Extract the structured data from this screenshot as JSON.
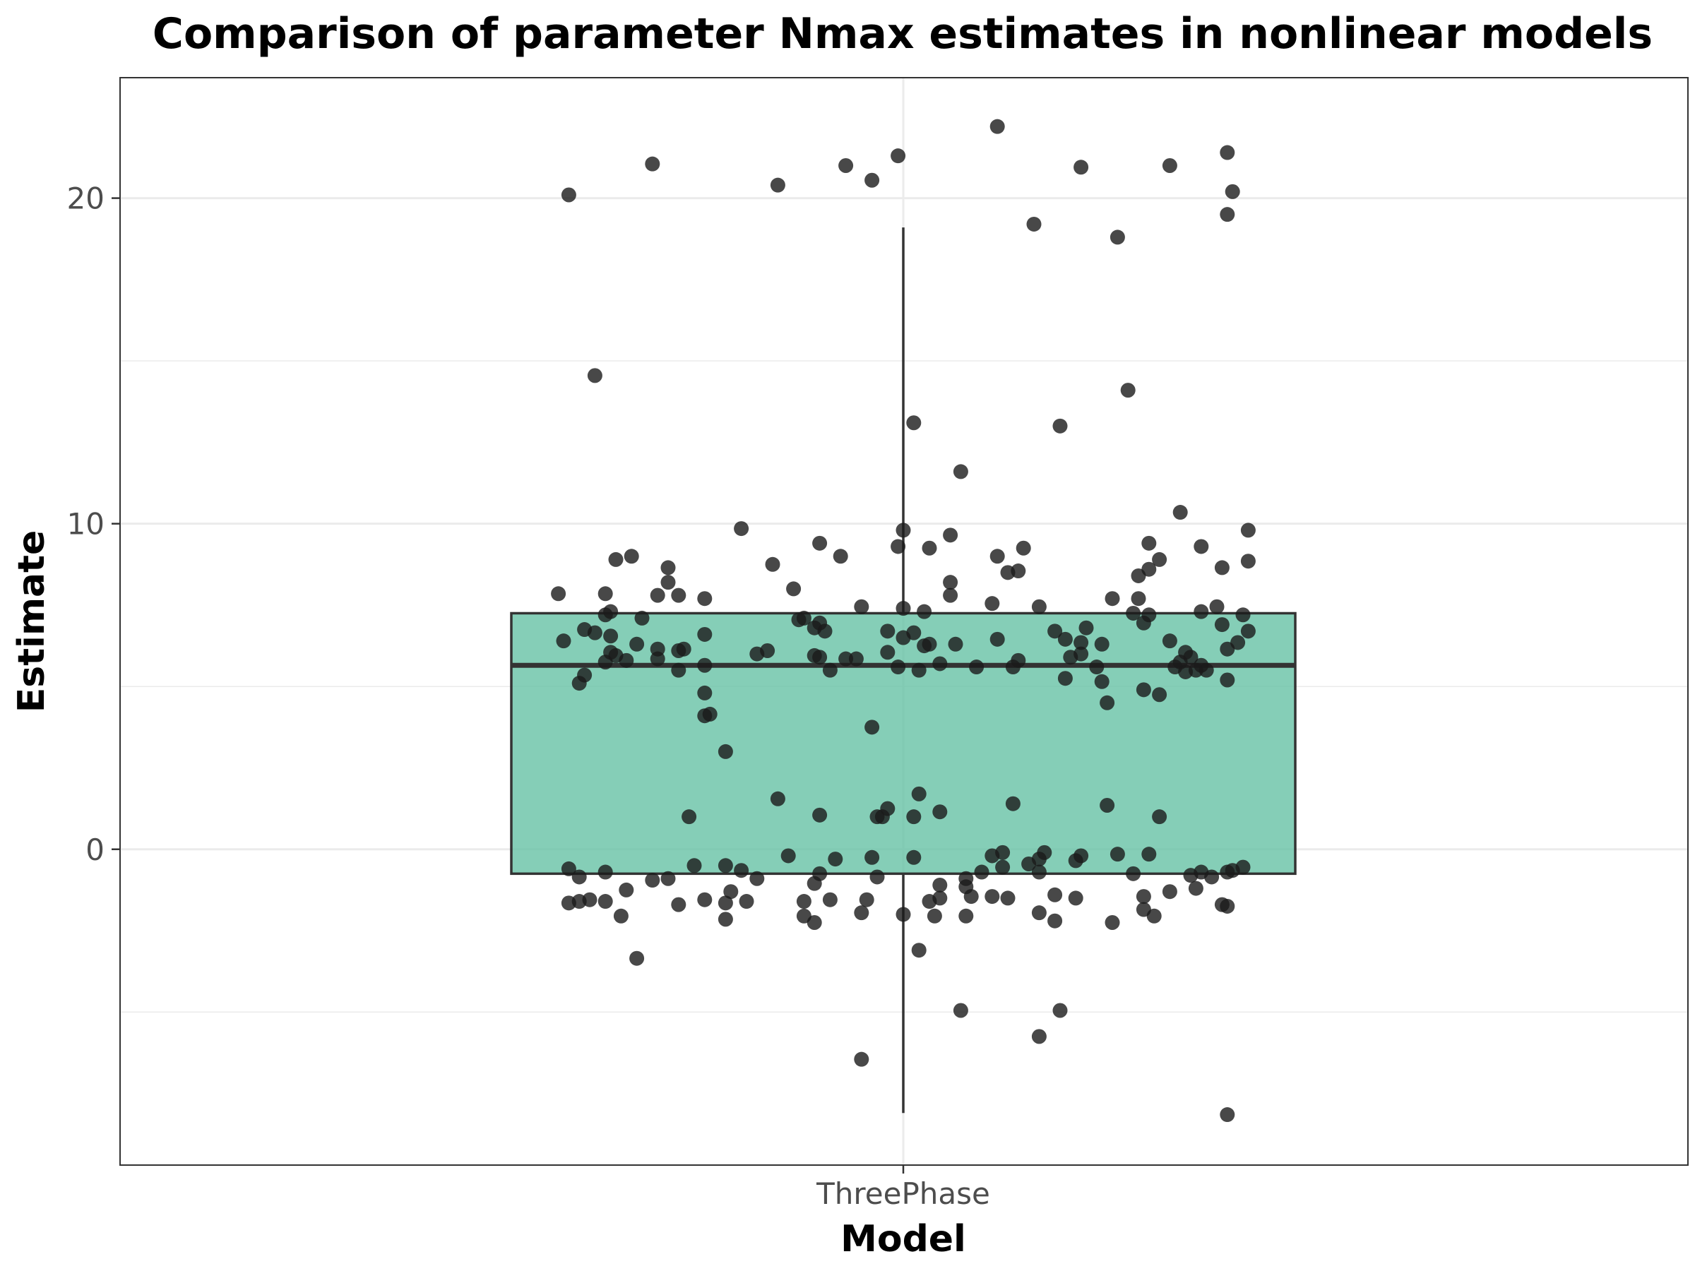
{
  "chart_data": {
    "type": "boxplot",
    "title": "Comparison of parameter Nmax estimates in nonlinear models",
    "xlabel": "Model",
    "ylabel": "Estimate",
    "categories": [
      "ThreePhase"
    ],
    "ylim": [
      -9.7,
      23.7
    ],
    "yticks": [
      0,
      10,
      20
    ],
    "grid": true,
    "legend": "none",
    "colors": {
      "box_fill": "#66c2a5",
      "box_stroke": "#333333",
      "points": "#1a1a1a",
      "grid": "#ebebeb",
      "panel_border": "#333333"
    },
    "box": {
      "category": "ThreePhase",
      "min": -8.1,
      "q1": -0.75,
      "median": 5.65,
      "q3": 7.25,
      "max": 19.1
    },
    "points": [
      {
        "x": -0.64,
        "y": 20.1
      },
      {
        "x": -0.48,
        "y": 21.05
      },
      {
        "x": -0.24,
        "y": 20.4
      },
      {
        "x": -0.11,
        "y": 21.0
      },
      {
        "x": -0.06,
        "y": 20.55
      },
      {
        "x": -0.01,
        "y": 21.3
      },
      {
        "x": 0.18,
        "y": 22.2
      },
      {
        "x": 0.34,
        "y": 20.95
      },
      {
        "x": 0.51,
        "y": 21.0
      },
      {
        "x": 0.62,
        "y": 21.4
      },
      {
        "x": 0.63,
        "y": 20.2
      },
      {
        "x": 0.62,
        "y": 19.5
      },
      {
        "x": 0.25,
        "y": 19.2
      },
      {
        "x": 0.41,
        "y": 18.8
      },
      {
        "x": -0.59,
        "y": 14.55
      },
      {
        "x": 0.43,
        "y": 14.1
      },
      {
        "x": 0.02,
        "y": 13.1
      },
      {
        "x": 0.3,
        "y": 13.0
      },
      {
        "x": 0.11,
        "y": 11.6
      },
      {
        "x": 0.53,
        "y": 10.35
      },
      {
        "x": -0.31,
        "y": 9.85
      },
      {
        "x": 0.0,
        "y": 9.8
      },
      {
        "x": 0.09,
        "y": 9.65
      },
      {
        "x": 0.66,
        "y": 9.8
      },
      {
        "x": -0.16,
        "y": 9.4
      },
      {
        "x": -0.01,
        "y": 9.3
      },
      {
        "x": 0.05,
        "y": 9.25
      },
      {
        "x": 0.23,
        "y": 9.25
      },
      {
        "x": 0.47,
        "y": 9.4
      },
      {
        "x": 0.57,
        "y": 9.3
      },
      {
        "x": -0.12,
        "y": 9.0
      },
      {
        "x": 0.18,
        "y": 9.0
      },
      {
        "x": 0.49,
        "y": 8.9
      },
      {
        "x": 0.66,
        "y": 8.85
      },
      {
        "x": -0.55,
        "y": 8.9
      },
      {
        "x": -0.52,
        "y": 9.0
      },
      {
        "x": -0.45,
        "y": 8.65
      },
      {
        "x": -0.25,
        "y": 8.75
      },
      {
        "x": 0.22,
        "y": 8.55
      },
      {
        "x": 0.2,
        "y": 8.5
      },
      {
        "x": 0.45,
        "y": 8.4
      },
      {
        "x": 0.47,
        "y": 8.6
      },
      {
        "x": 0.61,
        "y": 8.65
      },
      {
        "x": -0.45,
        "y": 8.2
      },
      {
        "x": 0.09,
        "y": 8.2
      },
      {
        "x": -0.21,
        "y": 8.0
      },
      {
        "x": -0.66,
        "y": 7.85
      },
      {
        "x": -0.57,
        "y": 7.85
      },
      {
        "x": -0.47,
        "y": 7.8
      },
      {
        "x": -0.43,
        "y": 7.8
      },
      {
        "x": -0.38,
        "y": 7.7
      },
      {
        "x": 0.09,
        "y": 7.8
      },
      {
        "x": 0.4,
        "y": 7.7
      },
      {
        "x": 0.45,
        "y": 7.7
      },
      {
        "x": -0.56,
        "y": 7.3
      },
      {
        "x": -0.5,
        "y": 7.1
      },
      {
        "x": -0.08,
        "y": 7.45
      },
      {
        "x": 0.0,
        "y": 7.4
      },
      {
        "x": 0.04,
        "y": 7.3
      },
      {
        "x": 0.17,
        "y": 7.55
      },
      {
        "x": 0.26,
        "y": 7.45
      },
      {
        "x": 0.44,
        "y": 7.25
      },
      {
        "x": 0.47,
        "y": 7.2
      },
      {
        "x": 0.57,
        "y": 7.3
      },
      {
        "x": 0.6,
        "y": 7.45
      },
      {
        "x": 0.65,
        "y": 7.2
      },
      {
        "x": -0.57,
        "y": 7.2
      },
      {
        "x": -0.2,
        "y": 7.05
      },
      {
        "x": -0.19,
        "y": 7.1
      },
      {
        "x": -0.16,
        "y": 6.95
      },
      {
        "x": 0.46,
        "y": 6.95
      },
      {
        "x": 0.61,
        "y": 6.9
      },
      {
        "x": -0.65,
        "y": 6.4
      },
      {
        "x": -0.61,
        "y": 6.75
      },
      {
        "x": -0.59,
        "y": 6.65
      },
      {
        "x": -0.56,
        "y": 6.55
      },
      {
        "x": -0.51,
        "y": 6.3
      },
      {
        "x": -0.38,
        "y": 6.6
      },
      {
        "x": -0.17,
        "y": 6.8
      },
      {
        "x": -0.15,
        "y": 6.7
      },
      {
        "x": -0.03,
        "y": 6.7
      },
      {
        "x": 0.02,
        "y": 6.65
      },
      {
        "x": 0.0,
        "y": 6.5
      },
      {
        "x": 0.05,
        "y": 6.3
      },
      {
        "x": 0.1,
        "y": 6.3
      },
      {
        "x": 0.18,
        "y": 6.45
      },
      {
        "x": 0.29,
        "y": 6.7
      },
      {
        "x": 0.31,
        "y": 6.45
      },
      {
        "x": 0.34,
        "y": 6.35
      },
      {
        "x": 0.35,
        "y": 6.8
      },
      {
        "x": 0.38,
        "y": 6.3
      },
      {
        "x": 0.51,
        "y": 6.4
      },
      {
        "x": 0.64,
        "y": 6.35
      },
      {
        "x": 0.66,
        "y": 6.7
      },
      {
        "x": -0.56,
        "y": 6.05
      },
      {
        "x": -0.55,
        "y": 5.95
      },
      {
        "x": -0.47,
        "y": 6.15
      },
      {
        "x": -0.43,
        "y": 6.1
      },
      {
        "x": -0.42,
        "y": 6.15
      },
      {
        "x": -0.28,
        "y": 6.0
      },
      {
        "x": -0.26,
        "y": 6.1
      },
      {
        "x": -0.17,
        "y": 5.95
      },
      {
        "x": -0.16,
        "y": 5.9
      },
      {
        "x": -0.11,
        "y": 5.85
      },
      {
        "x": -0.09,
        "y": 5.85
      },
      {
        "x": -0.03,
        "y": 6.05
      },
      {
        "x": 0.04,
        "y": 6.25
      },
      {
        "x": 0.34,
        "y": 6.0
      },
      {
        "x": 0.32,
        "y": 5.9
      },
      {
        "x": 0.54,
        "y": 6.05
      },
      {
        "x": 0.55,
        "y": 5.9
      },
      {
        "x": 0.62,
        "y": 6.15
      },
      {
        "x": -0.57,
        "y": 5.75
      },
      {
        "x": -0.53,
        "y": 5.8
      },
      {
        "x": -0.47,
        "y": 5.85
      },
      {
        "x": -0.38,
        "y": 5.65
      },
      {
        "x": -0.14,
        "y": 5.5
      },
      {
        "x": -0.01,
        "y": 5.6
      },
      {
        "x": 0.03,
        "y": 5.5
      },
      {
        "x": 0.07,
        "y": 5.7
      },
      {
        "x": 0.14,
        "y": 5.6
      },
      {
        "x": 0.21,
        "y": 5.6
      },
      {
        "x": 0.22,
        "y": 5.8
      },
      {
        "x": 0.37,
        "y": 5.6
      },
      {
        "x": 0.52,
        "y": 5.6
      },
      {
        "x": 0.53,
        "y": 5.75
      },
      {
        "x": 0.54,
        "y": 5.45
      },
      {
        "x": 0.56,
        "y": 5.5
      },
      {
        "x": 0.57,
        "y": 5.65
      },
      {
        "x": 0.58,
        "y": 5.5
      },
      {
        "x": -0.61,
        "y": 5.35
      },
      {
        "x": -0.62,
        "y": 5.1
      },
      {
        "x": -0.43,
        "y": 5.5
      },
      {
        "x": 0.31,
        "y": 5.25
      },
      {
        "x": 0.38,
        "y": 5.15
      },
      {
        "x": 0.62,
        "y": 5.2
      },
      {
        "x": -0.38,
        "y": 4.8
      },
      {
        "x": 0.46,
        "y": 4.9
      },
      {
        "x": 0.49,
        "y": 4.75
      },
      {
        "x": 0.39,
        "y": 4.5
      },
      {
        "x": -0.38,
        "y": 4.1
      },
      {
        "x": -0.37,
        "y": 4.15
      },
      {
        "x": -0.06,
        "y": 3.75
      },
      {
        "x": -0.34,
        "y": 3.0
      },
      {
        "x": -0.24,
        "y": 1.55
      },
      {
        "x": -0.03,
        "y": 1.25
      },
      {
        "x": 0.03,
        "y": 1.7
      },
      {
        "x": 0.07,
        "y": 1.15
      },
      {
        "x": 0.21,
        "y": 1.4
      },
      {
        "x": 0.39,
        "y": 1.35
      },
      {
        "x": -0.41,
        "y": 1.0
      },
      {
        "x": -0.16,
        "y": 1.05
      },
      {
        "x": -0.05,
        "y": 1.0
      },
      {
        "x": -0.04,
        "y": 1.0
      },
      {
        "x": 0.02,
        "y": 1.0
      },
      {
        "x": 0.49,
        "y": 1.0
      },
      {
        "x": -0.22,
        "y": -0.2
      },
      {
        "x": -0.13,
        "y": -0.3
      },
      {
        "x": -0.06,
        "y": -0.25
      },
      {
        "x": 0.02,
        "y": -0.25
      },
      {
        "x": 0.17,
        "y": -0.2
      },
      {
        "x": 0.19,
        "y": -0.1
      },
      {
        "x": 0.26,
        "y": -0.3
      },
      {
        "x": 0.27,
        "y": -0.1
      },
      {
        "x": 0.33,
        "y": -0.35
      },
      {
        "x": 0.34,
        "y": -0.2
      },
      {
        "x": 0.41,
        "y": -0.15
      },
      {
        "x": 0.47,
        "y": -0.15
      },
      {
        "x": -0.64,
        "y": -0.6
      },
      {
        "x": -0.62,
        "y": -0.85
      },
      {
        "x": -0.57,
        "y": -0.7
      },
      {
        "x": -0.45,
        "y": -0.9
      },
      {
        "x": -0.4,
        "y": -0.5
      },
      {
        "x": -0.34,
        "y": -0.5
      },
      {
        "x": -0.31,
        "y": -0.65
      },
      {
        "x": -0.28,
        "y": -0.9
      },
      {
        "x": -0.16,
        "y": -0.75
      },
      {
        "x": -0.05,
        "y": -0.85
      },
      {
        "x": 0.15,
        "y": -0.7
      },
      {
        "x": 0.12,
        "y": -0.9
      },
      {
        "x": 0.19,
        "y": -0.55
      },
      {
        "x": 0.24,
        "y": -0.45
      },
      {
        "x": 0.26,
        "y": -0.7
      },
      {
        "x": 0.44,
        "y": -0.75
      },
      {
        "x": 0.55,
        "y": -0.8
      },
      {
        "x": 0.57,
        "y": -0.7
      },
      {
        "x": 0.62,
        "y": -0.7
      },
      {
        "x": 0.63,
        "y": -0.65
      },
      {
        "x": 0.65,
        "y": -0.55
      },
      {
        "x": 0.59,
        "y": -0.85
      },
      {
        "x": -0.53,
        "y": -1.25
      },
      {
        "x": -0.48,
        "y": -0.95
      },
      {
        "x": -0.33,
        "y": -1.3
      },
      {
        "x": -0.17,
        "y": -1.05
      },
      {
        "x": 0.07,
        "y": -1.1
      },
      {
        "x": 0.12,
        "y": -1.15
      },
      {
        "x": 0.29,
        "y": -1.4
      },
      {
        "x": 0.46,
        "y": -1.45
      },
      {
        "x": 0.51,
        "y": -1.3
      },
      {
        "x": 0.56,
        "y": -1.2
      },
      {
        "x": -0.64,
        "y": -1.65
      },
      {
        "x": -0.62,
        "y": -1.6
      },
      {
        "x": -0.6,
        "y": -1.55
      },
      {
        "x": -0.57,
        "y": -1.6
      },
      {
        "x": -0.43,
        "y": -1.7
      },
      {
        "x": -0.38,
        "y": -1.55
      },
      {
        "x": -0.34,
        "y": -1.65
      },
      {
        "x": -0.3,
        "y": -1.6
      },
      {
        "x": -0.19,
        "y": -1.6
      },
      {
        "x": -0.14,
        "y": -1.55
      },
      {
        "x": -0.07,
        "y": -1.55
      },
      {
        "x": 0.05,
        "y": -1.6
      },
      {
        "x": 0.07,
        "y": -1.5
      },
      {
        "x": 0.13,
        "y": -1.45
      },
      {
        "x": 0.17,
        "y": -1.45
      },
      {
        "x": 0.2,
        "y": -1.5
      },
      {
        "x": 0.33,
        "y": -1.5
      },
      {
        "x": 0.61,
        "y": -1.7
      },
      {
        "x": 0.62,
        "y": -1.75
      },
      {
        "x": -0.54,
        "y": -2.05
      },
      {
        "x": -0.34,
        "y": -2.15
      },
      {
        "x": -0.19,
        "y": -2.05
      },
      {
        "x": -0.17,
        "y": -2.25
      },
      {
        "x": -0.08,
        "y": -1.95
      },
      {
        "x": 0.0,
        "y": -2.0
      },
      {
        "x": 0.06,
        "y": -2.05
      },
      {
        "x": 0.12,
        "y": -2.05
      },
      {
        "x": 0.26,
        "y": -1.95
      },
      {
        "x": 0.29,
        "y": -2.2
      },
      {
        "x": 0.4,
        "y": -2.25
      },
      {
        "x": 0.46,
        "y": -1.85
      },
      {
        "x": 0.48,
        "y": -2.05
      },
      {
        "x": -0.51,
        "y": -3.35
      },
      {
        "x": 0.03,
        "y": -3.1
      },
      {
        "x": 0.11,
        "y": -4.95
      },
      {
        "x": 0.3,
        "y": -4.95
      },
      {
        "x": 0.26,
        "y": -5.75
      },
      {
        "x": -0.08,
        "y": -6.45
      },
      {
        "x": 0.62,
        "y": -8.15
      }
    ]
  }
}
